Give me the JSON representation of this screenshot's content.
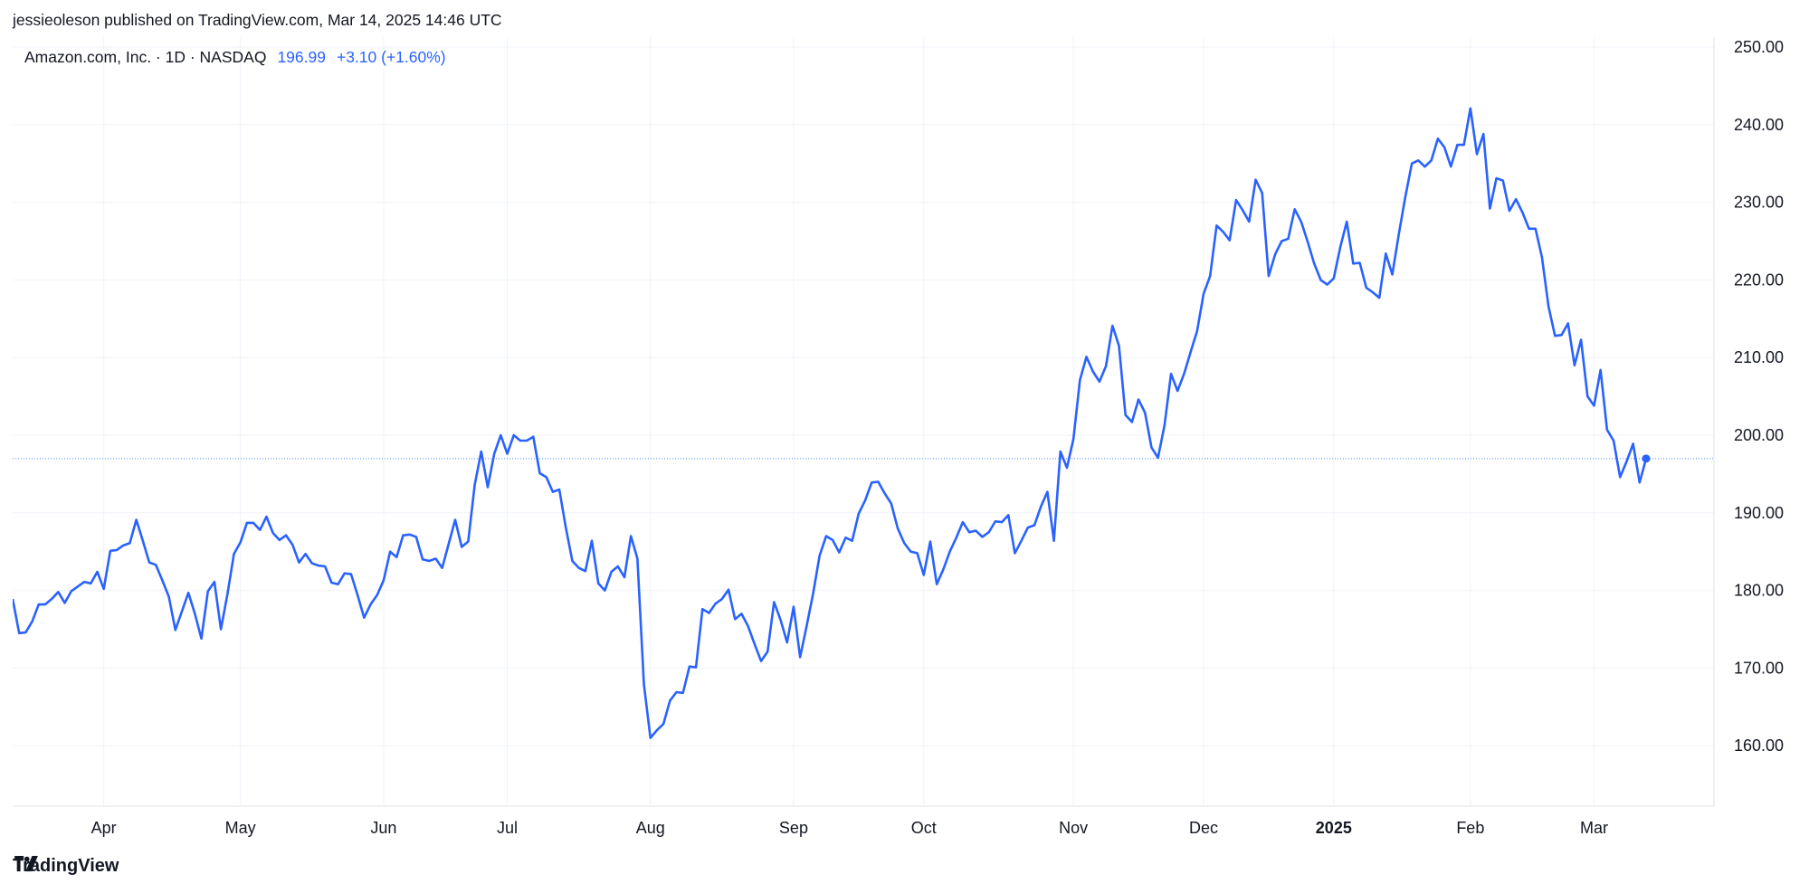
{
  "header": {
    "text": "jessieoleson published on TradingView.com, Mar 14, 2025 14:46 UTC"
  },
  "legend": {
    "symbol": "Amazon.com, Inc. · 1D · NASDAQ",
    "price": "196.99",
    "change": "+3.10 (+1.60%)"
  },
  "footer": {
    "brand": "TradingView",
    "logo_icon": "tradingview-logo-icon"
  },
  "colors": {
    "line": "#2962ff",
    "grid": "#f0f3fa",
    "text": "#131722",
    "legend_value": "#2962ff"
  },
  "chart_data": {
    "type": "line",
    "title": "",
    "xlabel": "",
    "ylabel": "",
    "ylim": [
      150,
      252
    ],
    "y_ticks": [
      "160.00",
      "170.00",
      "180.00",
      "190.00",
      "200.00",
      "210.00",
      "220.00",
      "230.00",
      "240.00",
      "250.00"
    ],
    "x_ticks": [
      {
        "label": "Apr",
        "index": 14,
        "bold": false
      },
      {
        "label": "May",
        "index": 35,
        "bold": false
      },
      {
        "label": "Jun",
        "index": 57,
        "bold": false
      },
      {
        "label": "Jul",
        "index": 76,
        "bold": false
      },
      {
        "label": "Aug",
        "index": 98,
        "bold": false
      },
      {
        "label": "Sep",
        "index": 120,
        "bold": false
      },
      {
        "label": "Oct",
        "index": 140,
        "bold": false
      },
      {
        "label": "Nov",
        "index": 163,
        "bold": false
      },
      {
        "label": "Dec",
        "index": 183,
        "bold": false
      },
      {
        "label": "2025",
        "index": 203,
        "bold": true
      },
      {
        "label": "Feb",
        "index": 224,
        "bold": false
      },
      {
        "label": "Mar",
        "index": 243,
        "bold": false
      }
    ],
    "last_value": 196.99,
    "grid": true,
    "series": [
      {
        "values": [
          178.9,
          174.5,
          174.6,
          176.0,
          178.2,
          178.2,
          178.9,
          179.8,
          178.4,
          179.9,
          180.5,
          181.1,
          180.9,
          182.4,
          180.2,
          185.1,
          185.2,
          185.8,
          186.1,
          189.1,
          186.4,
          183.6,
          183.3,
          181.3,
          179.2,
          174.9,
          177.3,
          179.7,
          177.0,
          173.8,
          179.9,
          181.1,
          175.0,
          179.5,
          184.7,
          186.2,
          188.7,
          188.7,
          187.8,
          189.5,
          187.4,
          186.5,
          187.1,
          185.9,
          183.6,
          184.7,
          183.5,
          183.2,
          183.1,
          181.0,
          180.8,
          182.2,
          182.1,
          179.4,
          176.5,
          178.2,
          179.4,
          181.3,
          185.0,
          184.3,
          187.1,
          187.2,
          186.9,
          184.0,
          183.8,
          184.1,
          182.9,
          186.0,
          189.1,
          185.6,
          186.3,
          193.6,
          197.9,
          193.3,
          197.6,
          200.0,
          197.6,
          200.0,
          199.3,
          199.3,
          199.8,
          195.1,
          194.6,
          192.7,
          193.0,
          188.1,
          183.8,
          182.9,
          182.5,
          186.4,
          180.9,
          180.0,
          182.4,
          183.1,
          181.7,
          187.0,
          184.1,
          167.9,
          161.0,
          162.0,
          162.8,
          165.8,
          166.9,
          166.8,
          170.2,
          170.1,
          177.6,
          177.1,
          178.3,
          178.9,
          180.1,
          176.3,
          177.0,
          175.4,
          173.1,
          170.9,
          172.1,
          178.5,
          176.2,
          173.3,
          177.9,
          171.4,
          175.4,
          179.6,
          184.5,
          187.0,
          186.5,
          184.9,
          186.8,
          186.4,
          189.9,
          191.6,
          193.9,
          194.0,
          192.5,
          191.2,
          188.0,
          186.1,
          185.0,
          184.8,
          182.0,
          186.3,
          180.8,
          182.7,
          185.0,
          186.8,
          188.8,
          187.5,
          187.7,
          186.9,
          187.5,
          188.9,
          188.8,
          189.7,
          184.8,
          186.4,
          188.1,
          188.4,
          190.8,
          192.7,
          186.4,
          197.9,
          195.8,
          199.5,
          207.1,
          210.1,
          208.2,
          206.9,
          208.9,
          214.1,
          211.5,
          202.6,
          201.7,
          204.6,
          202.9,
          198.4,
          197.1,
          201.3,
          207.9,
          205.7,
          207.9,
          210.7,
          213.4,
          218.2,
          220.5,
          227.0,
          226.2,
          225.1,
          230.3,
          229.0,
          227.5,
          232.9,
          231.2,
          220.5,
          223.3,
          225.0,
          225.3,
          229.1,
          227.5,
          224.9,
          222.1,
          220.0,
          219.4,
          220.2,
          224.2,
          227.5,
          222.1,
          222.2,
          219.0,
          218.4,
          217.7,
          223.4,
          220.7,
          225.9,
          230.7,
          235.0,
          235.4,
          234.6,
          235.4,
          238.2,
          237.1,
          234.6,
          237.4,
          237.4,
          242.1,
          236.2,
          238.8,
          229.2,
          233.1,
          232.8,
          228.9,
          230.4,
          228.7,
          226.6,
          226.6,
          222.9,
          216.6,
          212.8,
          212.9,
          214.4,
          209.0,
          212.3,
          205.0,
          203.8,
          208.4,
          200.7,
          199.3,
          194.6,
          196.6,
          198.9,
          193.9,
          196.99
        ]
      }
    ]
  }
}
